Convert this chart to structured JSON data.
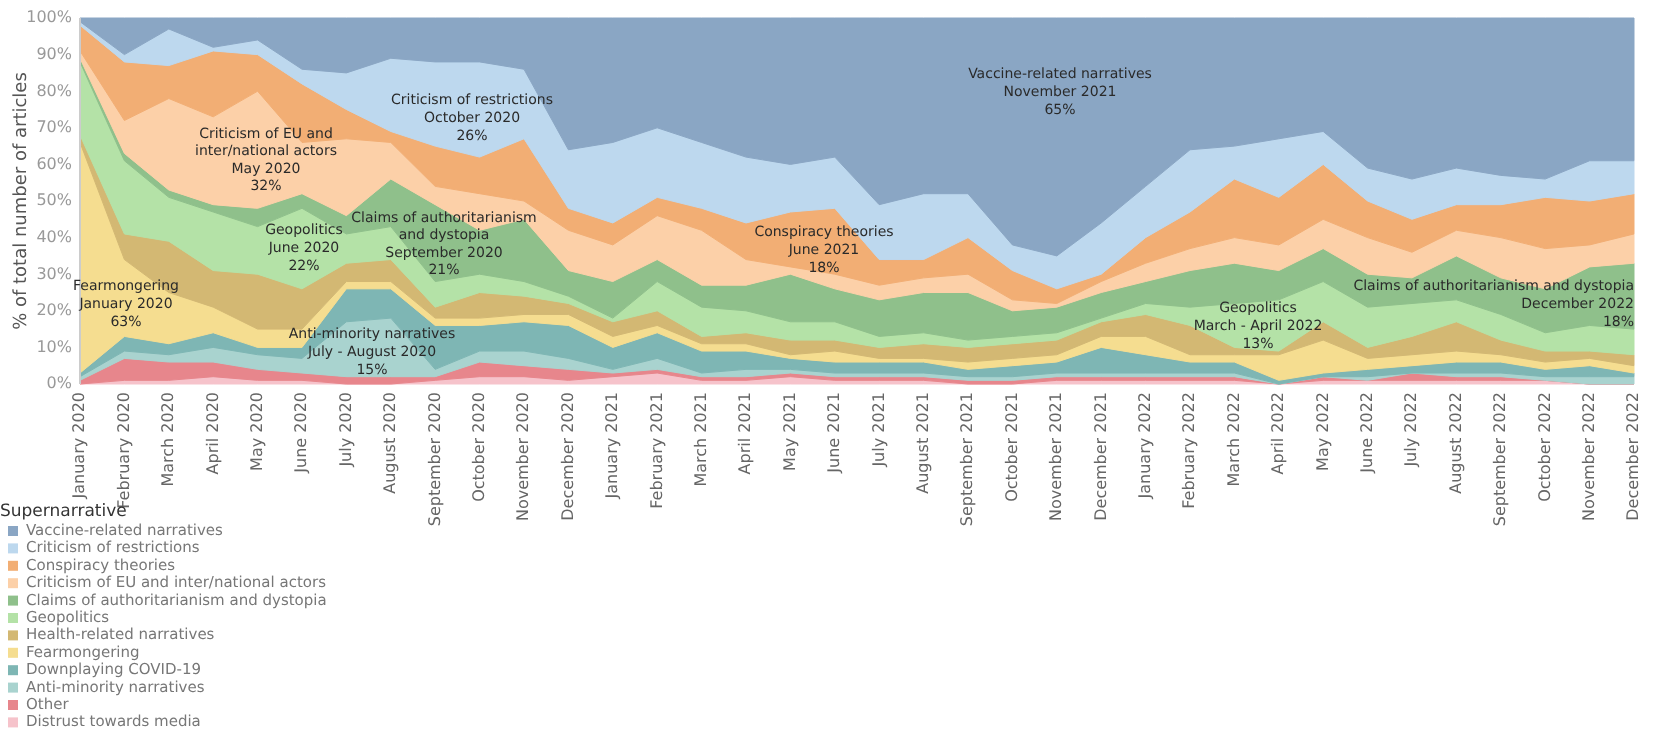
{
  "chart_data": {
    "type": "area",
    "stacked": true,
    "ylabel": "% of total number of articles",
    "legend_title": "Supernarrative",
    "legend": "bottom",
    "categories": [
      "January 2020",
      "February 2020",
      "March 2020",
      "April 2020",
      "May 2020",
      "June 2020",
      "July 2020",
      "August 2020",
      "September 2020",
      "October 2020",
      "November 2020",
      "December 2020",
      "January 2021",
      "February 2021",
      "March 2021",
      "April 2021",
      "May 2021",
      "June 2021",
      "July 2021",
      "August 2021",
      "September 2021",
      "October 2021",
      "November 2021",
      "December 2021",
      "January 2022",
      "February 2022",
      "March 2022",
      "April 2022",
      "May 2022",
      "June 2022",
      "July 2022",
      "August 2022",
      "September 2022",
      "October 2022",
      "November 2022",
      "December 2022"
    ],
    "ylim": [
      0,
      100
    ],
    "yticks": [
      {
        "value": 0,
        "label": "0%"
      },
      {
        "value": 10,
        "label": "10%"
      },
      {
        "value": 20,
        "label": "20%"
      },
      {
        "value": 30,
        "label": "30%"
      },
      {
        "value": 40,
        "label": "40%"
      },
      {
        "value": 50,
        "label": "50%"
      },
      {
        "value": 60,
        "label": "60%"
      },
      {
        "value": 70,
        "label": "70%"
      },
      {
        "value": 80,
        "label": "80%"
      },
      {
        "value": 90,
        "label": "90%"
      },
      {
        "value": 100,
        "label": "100%"
      }
    ],
    "series": [
      {
        "name": "Distrust towards media",
        "color": "#f6c3cb",
        "values": [
          0,
          1,
          1,
          2,
          1,
          1,
          0,
          0,
          1,
          2,
          2,
          1,
          2,
          3,
          1,
          1,
          2,
          1,
          1,
          1,
          0,
          0,
          1,
          1,
          1,
          1,
          1,
          0,
          1,
          1,
          1,
          1,
          1,
          1,
          0,
          0
        ]
      },
      {
        "name": "Other",
        "color": "#e7868c",
        "values": [
          1,
          6,
          5,
          4,
          3,
          2,
          2,
          2,
          1,
          4,
          3,
          3,
          1,
          1,
          1,
          1,
          1,
          1,
          1,
          1,
          1,
          1,
          1,
          1,
          1,
          1,
          1,
          0,
          1,
          0,
          2,
          1,
          1,
          0,
          0,
          0
        ]
      },
      {
        "name": "Anti-minority narratives",
        "color": "#a9d3cf",
        "values": [
          1,
          2,
          2,
          4,
          4,
          4,
          15,
          16,
          2,
          3,
          4,
          3,
          1,
          3,
          1,
          2,
          1,
          1,
          1,
          1,
          1,
          1,
          1,
          1,
          1,
          1,
          1,
          0,
          0,
          1,
          0,
          1,
          1,
          1,
          2,
          2
        ]
      },
      {
        "name": "Downplaying COVID-19",
        "color": "#7eb6b4",
        "values": [
          1,
          4,
          3,
          4,
          2,
          3,
          9,
          8,
          12,
          7,
          8,
          9,
          6,
          7,
          6,
          5,
          3,
          3,
          3,
          3,
          2,
          3,
          3,
          7,
          5,
          3,
          3,
          1,
          1,
          2,
          2,
          3,
          3,
          2,
          3,
          1
        ]
      },
      {
        "name": "Fearmongering",
        "color": "#f5dd90",
        "values": [
          63,
          21,
          14,
          7,
          5,
          5,
          2,
          2,
          2,
          2,
          2,
          3,
          3,
          2,
          2,
          2,
          1,
          3,
          1,
          1,
          2,
          2,
          2,
          3,
          5,
          2,
          2,
          7,
          9,
          3,
          3,
          3,
          2,
          2,
          2,
          2
        ]
      },
      {
        "name": "Health-related narratives",
        "color": "#d3b873",
        "values": [
          2,
          7,
          14,
          10,
          15,
          11,
          5,
          6,
          3,
          7,
          5,
          3,
          4,
          4,
          2,
          3,
          4,
          3,
          3,
          4,
          4,
          4,
          4,
          4,
          6,
          8,
          2,
          1,
          5,
          3,
          5,
          8,
          4,
          3,
          2,
          3
        ]
      },
      {
        "name": "Geopolitics",
        "color": "#b4e2a7",
        "values": [
          20,
          20,
          12,
          16,
          13,
          22,
          8,
          9,
          7,
          5,
          4,
          2,
          1,
          8,
          8,
          6,
          5,
          5,
          3,
          3,
          2,
          2,
          2,
          1,
          3,
          5,
          12,
          14,
          11,
          11,
          9,
          6,
          7,
          5,
          7,
          7
        ]
      },
      {
        "name": "Claims of authoritarianism and dystopia",
        "color": "#8fc08b",
        "values": [
          1,
          2,
          2,
          2,
          5,
          4,
          5,
          13,
          21,
          12,
          17,
          7,
          10,
          6,
          6,
          7,
          13,
          9,
          10,
          11,
          13,
          7,
          7,
          7,
          6,
          10,
          11,
          8,
          9,
          9,
          7,
          12,
          10,
          12,
          16,
          18
        ]
      },
      {
        "name": "Criticism of EU and inter/national actors",
        "color": "#fcd0a8",
        "values": [
          2,
          9,
          25,
          24,
          32,
          14,
          21,
          10,
          5,
          10,
          5,
          11,
          10,
          12,
          15,
          7,
          2,
          4,
          4,
          4,
          5,
          3,
          1,
          3,
          5,
          6,
          7,
          7,
          8,
          10,
          7,
          7,
          11,
          11,
          6,
          8
        ]
      },
      {
        "name": "Conspiracy theories",
        "color": "#f2ae74",
        "values": [
          7,
          16,
          9,
          18,
          10,
          16,
          8,
          3,
          11,
          10,
          17,
          6,
          6,
          5,
          6,
          10,
          15,
          18,
          7,
          5,
          10,
          8,
          4,
          2,
          7,
          10,
          16,
          13,
          15,
          10,
          9,
          7,
          9,
          14,
          12,
          11
        ]
      },
      {
        "name": "Criticism of restrictions",
        "color": "#bdd8ee",
        "values": [
          1,
          2,
          10,
          1,
          4,
          4,
          10,
          20,
          23,
          26,
          19,
          16,
          22,
          19,
          18,
          18,
          13,
          14,
          15,
          18,
          12,
          7,
          9,
          14,
          14,
          17,
          9,
          16,
          9,
          9,
          11,
          10,
          8,
          5,
          11,
          9
        ]
      },
      {
        "name": "Vaccine-related narratives",
        "color": "#8aa6c4",
        "values": [
          1,
          10,
          3,
          8,
          6,
          14,
          15,
          11,
          12,
          12,
          14,
          36,
          34,
          30,
          34,
          38,
          40,
          38,
          51,
          48,
          48,
          62,
          65,
          56,
          46,
          36,
          35,
          33,
          31,
          41,
          44,
          41,
          43,
          44,
          39,
          39
        ]
      }
    ],
    "annotations": [
      "Criticism of EU and\ninter/national actors\nMay 2020\n32%",
      "Criticism of restrictions\nOctober 2020\n26%",
      "Geopolitics\nJune 2020\n22%",
      "Claims of authoritarianism\nand dystopia\nSeptember 2020\n21%",
      "Fearmongering\nJanuary 2020\n63%",
      "Anti-minority narratives\nJuly - August 2020\n15%",
      "Conspiracy theories\nJune 2021\n18%",
      "Vaccine-related narratives\nNovember 2021\n65%",
      "Geopolitics\nMarch - April 2022\n13%",
      "Claims of authoritarianism and dystopia\nDecember 2022\n18%"
    ]
  }
}
